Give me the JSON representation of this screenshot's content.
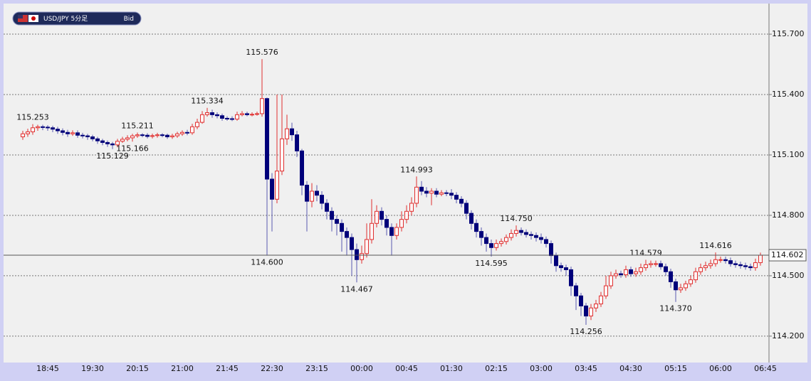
{
  "chart_data": {
    "type": "candlestick",
    "title": "USD/JPY 5分足",
    "price_type": "Bid",
    "ylim": [
      114.069,
      115.852
    ],
    "yticks": [
      {
        "value": 114.2,
        "label": "114.200"
      },
      {
        "value": 114.5,
        "label": "114.500"
      },
      {
        "value": 114.8,
        "label": "114.800"
      },
      {
        "value": 115.1,
        "label": "115.100"
      },
      {
        "value": 115.4,
        "label": "115.400"
      },
      {
        "value": 115.7,
        "label": "115.700"
      }
    ],
    "grid": true,
    "up_color": "#e03030",
    "down_color": "#00007a",
    "last_price": 114.602,
    "categories": [
      null,
      null,
      null,
      null,
      null,
      "18:45",
      null,
      null,
      null,
      null,
      null,
      null,
      null,
      null,
      "19:30",
      null,
      null,
      null,
      null,
      null,
      null,
      null,
      null,
      "20:15",
      null,
      null,
      null,
      null,
      null,
      null,
      null,
      null,
      "21:00",
      null,
      null,
      null,
      null,
      null,
      null,
      null,
      null,
      "21:45",
      null,
      null,
      null,
      null,
      null,
      null,
      null,
      null,
      "22:30",
      null,
      null,
      null,
      null,
      null,
      null,
      null,
      null,
      "23:15",
      null,
      null,
      null,
      null,
      null,
      null,
      null,
      null,
      "00:00",
      null,
      null,
      null,
      null,
      null,
      null,
      null,
      null,
      "00:45",
      null,
      null,
      null,
      null,
      null,
      null,
      null,
      null,
      "01:30",
      null,
      null,
      null,
      null,
      null,
      null,
      null,
      null,
      "02:15",
      null,
      null,
      null,
      null,
      null,
      null,
      null,
      null,
      "03:00",
      null,
      null,
      null,
      null,
      null,
      null,
      null,
      null,
      "03:45",
      null,
      null,
      null,
      null,
      null,
      null,
      null,
      null,
      "04:30",
      null,
      null,
      null,
      null,
      null,
      null,
      null,
      null,
      "05:15",
      null,
      null,
      null,
      null,
      null,
      null,
      null,
      null,
      "06:00",
      null,
      null,
      null,
      null,
      null,
      null,
      null,
      null,
      "06:45"
    ],
    "open": [
      115.19,
      115.205,
      115.215,
      115.235,
      115.24,
      115.238,
      115.235,
      115.228,
      115.22,
      115.212,
      115.205,
      115.21,
      115.198,
      115.195,
      115.19,
      115.18,
      115.17,
      115.162,
      115.155,
      115.15,
      115.168,
      115.178,
      115.185,
      115.195,
      115.2,
      115.198,
      115.192,
      115.196,
      115.2,
      115.198,
      115.19,
      115.195,
      115.205,
      115.212,
      115.21,
      115.24,
      115.262,
      115.3,
      115.31,
      115.3,
      115.295,
      115.282,
      115.28,
      115.278,
      115.3,
      115.305,
      115.3,
      115.302,
      115.305,
      115.38,
      114.98,
      114.88,
      115.02,
      115.18,
      115.23,
      115.2,
      115.12,
      114.95,
      114.87,
      114.92,
      114.9,
      114.86,
      114.82,
      114.78,
      114.76,
      114.72,
      114.69,
      114.63,
      114.58,
      114.61,
      114.68,
      114.76,
      114.82,
      114.78,
      114.74,
      114.7,
      114.74,
      114.78,
      114.82,
      114.86,
      114.94,
      114.92,
      114.91,
      114.92,
      114.905,
      114.912,
      114.91,
      114.9,
      114.88,
      114.86,
      114.81,
      114.76,
      114.72,
      114.69,
      114.66,
      114.64,
      114.66,
      114.67,
      114.69,
      114.71,
      114.725,
      114.715,
      114.705,
      114.7,
      114.69,
      114.68,
      114.66,
      114.6,
      114.55,
      114.54,
      114.53,
      114.45,
      114.4,
      114.35,
      114.3,
      114.34,
      114.36,
      114.4,
      114.45,
      114.5,
      114.51,
      114.505,
      114.53,
      114.51,
      114.52,
      114.54,
      114.555,
      114.56,
      114.56,
      114.545,
      114.52,
      114.47,
      114.43,
      114.44,
      114.46,
      114.48,
      114.52,
      114.54,
      114.55,
      114.56,
      114.58,
      114.58,
      114.575,
      114.56,
      114.555,
      114.55,
      114.545,
      114.54,
      114.565,
      null
    ],
    "high": [
      115.22,
      115.23,
      115.253,
      115.25,
      115.25,
      115.248,
      115.245,
      115.24,
      115.232,
      115.225,
      115.222,
      115.222,
      115.21,
      115.205,
      115.2,
      115.19,
      115.18,
      115.172,
      115.165,
      115.18,
      115.19,
      115.198,
      115.205,
      115.211,
      115.208,
      115.208,
      115.206,
      115.21,
      115.208,
      115.206,
      115.205,
      115.215,
      115.222,
      115.225,
      115.255,
      115.28,
      115.318,
      115.334,
      115.325,
      115.312,
      115.305,
      115.292,
      115.292,
      115.315,
      115.318,
      115.315,
      115.312,
      115.315,
      115.576,
      115.385,
      115.01,
      115.4,
      115.4,
      115.3,
      115.26,
      115.22,
      115.13,
      114.97,
      114.96,
      114.95,
      114.92,
      114.88,
      114.84,
      114.8,
      114.78,
      114.74,
      114.71,
      114.66,
      114.65,
      114.76,
      114.88,
      114.85,
      114.84,
      114.8,
      114.76,
      114.76,
      114.82,
      114.85,
      114.89,
      114.993,
      114.97,
      114.94,
      114.935,
      114.935,
      114.925,
      114.925,
      114.93,
      114.915,
      114.895,
      114.875,
      114.825,
      114.78,
      114.74,
      114.71,
      114.68,
      114.68,
      114.685,
      114.705,
      114.73,
      114.75,
      114.74,
      114.73,
      114.72,
      114.715,
      114.71,
      114.695,
      114.675,
      114.615,
      114.565,
      114.555,
      114.545,
      114.465,
      114.415,
      114.365,
      114.36,
      114.38,
      114.42,
      114.5,
      114.52,
      114.53,
      114.525,
      114.55,
      114.545,
      114.54,
      114.56,
      114.579,
      114.575,
      114.575,
      114.575,
      114.56,
      114.535,
      114.485,
      114.46,
      114.475,
      114.5,
      114.54,
      114.56,
      114.57,
      114.58,
      114.616,
      114.595,
      114.595,
      114.59,
      114.575,
      114.57,
      114.565,
      114.56,
      114.585,
      114.615,
      null
    ],
    "low": [
      115.175,
      115.19,
      115.2,
      115.22,
      115.223,
      115.22,
      115.213,
      115.205,
      115.197,
      115.19,
      115.195,
      115.185,
      115.182,
      115.175,
      115.168,
      115.155,
      115.148,
      115.14,
      115.129,
      115.138,
      115.16,
      115.168,
      115.166,
      115.185,
      115.188,
      115.182,
      115.182,
      115.186,
      115.188,
      115.18,
      115.18,
      115.185,
      115.195,
      115.198,
      115.2,
      115.228,
      115.255,
      115.29,
      115.285,
      115.282,
      115.27,
      115.27,
      115.268,
      115.27,
      115.292,
      115.292,
      115.292,
      115.295,
      115.29,
      114.6,
      114.72,
      114.86,
      115.0,
      115.15,
      115.17,
      115.09,
      114.9,
      114.72,
      114.84,
      114.87,
      114.83,
      114.78,
      114.72,
      114.7,
      114.62,
      114.6,
      114.5,
      114.467,
      114.56,
      114.59,
      114.66,
      114.74,
      114.75,
      114.7,
      114.6,
      114.68,
      114.72,
      114.76,
      114.8,
      114.84,
      114.9,
      114.89,
      114.85,
      114.89,
      114.895,
      114.895,
      114.88,
      114.86,
      114.84,
      114.78,
      114.73,
      114.69,
      114.65,
      114.62,
      114.595,
      114.625,
      114.645,
      114.655,
      114.675,
      114.695,
      114.7,
      114.69,
      114.68,
      114.67,
      114.66,
      114.64,
      114.56,
      114.52,
      114.52,
      114.5,
      114.4,
      114.33,
      114.3,
      114.256,
      114.28,
      114.32,
      114.345,
      114.385,
      114.435,
      114.485,
      114.49,
      114.49,
      114.495,
      114.495,
      114.505,
      114.525,
      114.54,
      114.545,
      114.53,
      114.5,
      114.44,
      114.37,
      114.415,
      114.425,
      114.445,
      114.465,
      114.505,
      114.525,
      114.535,
      114.545,
      114.565,
      114.56,
      114.545,
      114.54,
      114.535,
      114.53,
      114.525,
      114.525,
      114.55,
      null
    ],
    "close": [
      115.205,
      115.215,
      115.235,
      115.24,
      115.238,
      115.235,
      115.228,
      115.22,
      115.212,
      115.205,
      115.21,
      115.198,
      115.195,
      115.19,
      115.18,
      115.17,
      115.162,
      115.155,
      115.15,
      115.168,
      115.178,
      115.185,
      115.195,
      115.2,
      115.198,
      115.192,
      115.196,
      115.2,
      115.198,
      115.19,
      115.195,
      115.205,
      115.212,
      115.21,
      115.24,
      115.262,
      115.3,
      115.31,
      115.3,
      115.295,
      115.282,
      115.28,
      115.278,
      115.3,
      115.305,
      115.3,
      115.302,
      115.305,
      115.38,
      114.98,
      114.88,
      115.02,
      115.18,
      115.23,
      115.2,
      115.12,
      114.95,
      114.87,
      114.92,
      114.9,
      114.86,
      114.82,
      114.78,
      114.76,
      114.72,
      114.69,
      114.63,
      114.58,
      114.61,
      114.68,
      114.76,
      114.82,
      114.78,
      114.74,
      114.7,
      114.74,
      114.78,
      114.82,
      114.86,
      114.94,
      114.92,
      114.91,
      114.92,
      114.905,
      114.912,
      114.91,
      114.9,
      114.88,
      114.86,
      114.81,
      114.76,
      114.72,
      114.69,
      114.66,
      114.64,
      114.66,
      114.67,
      114.69,
      114.71,
      114.725,
      114.715,
      114.705,
      114.7,
      114.69,
      114.68,
      114.66,
      114.6,
      114.55,
      114.54,
      114.53,
      114.45,
      114.4,
      114.35,
      114.3,
      114.34,
      114.36,
      114.4,
      114.45,
      114.5,
      114.51,
      114.505,
      114.53,
      114.51,
      114.52,
      114.54,
      114.555,
      114.56,
      114.56,
      114.545,
      114.52,
      114.47,
      114.43,
      114.44,
      114.46,
      114.48,
      114.52,
      114.54,
      114.55,
      114.56,
      114.58,
      114.58,
      114.575,
      114.56,
      114.555,
      114.55,
      114.545,
      114.54,
      114.565,
      114.602,
      null
    ],
    "high_labels": {
      "2": "115.253",
      "23": "115.211",
      "37": "115.334",
      "48": "115.576",
      "79": "114.993",
      "99": "114.750",
      "125": "114.579",
      "139": "114.616"
    },
    "low_labels": {
      "18": "115.129",
      "22": "115.166",
      "49": "114.600",
      "67": "114.467",
      "94": "114.595",
      "113": "114.256",
      "131": "114.370"
    }
  }
}
